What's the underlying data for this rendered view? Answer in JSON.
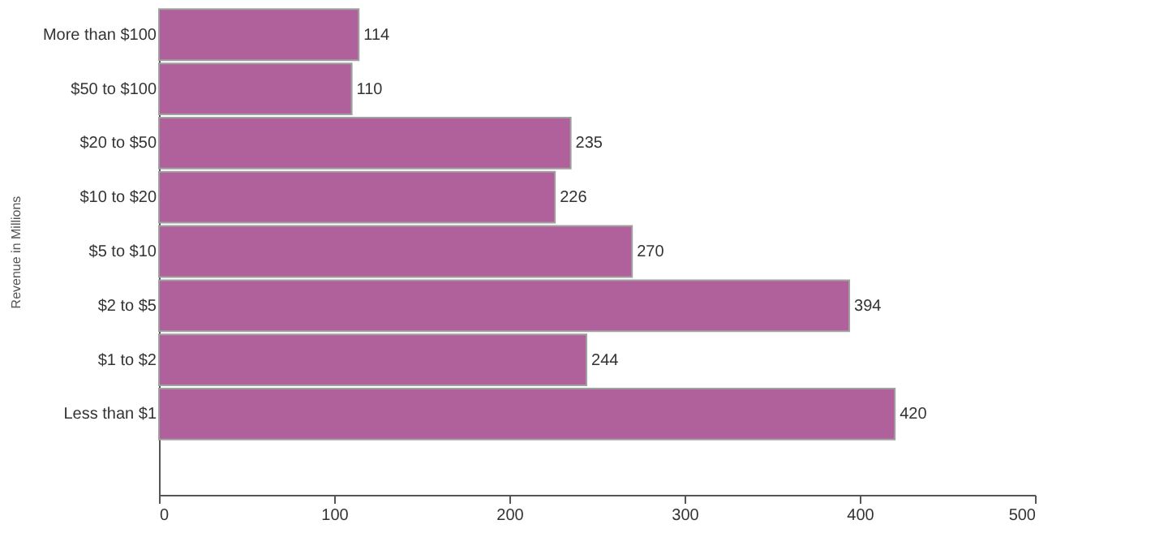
{
  "chart_data": {
    "type": "bar",
    "orientation": "horizontal",
    "ylabel": "Revenue in Millions",
    "categories": [
      "More than $100",
      "$50 to $100",
      "$20 to $50",
      "$10 to $20",
      "$5 to $10",
      "$2 to $5",
      "$1 to $2",
      "Less than $1"
    ],
    "values": [
      114,
      110,
      235,
      226,
      270,
      394,
      244,
      420
    ],
    "color": "#b0609a",
    "xlim": [
      0,
      500
    ],
    "xticks": [
      0,
      100,
      200,
      300,
      400,
      500
    ],
    "data_labels": true,
    "grid": false
  }
}
